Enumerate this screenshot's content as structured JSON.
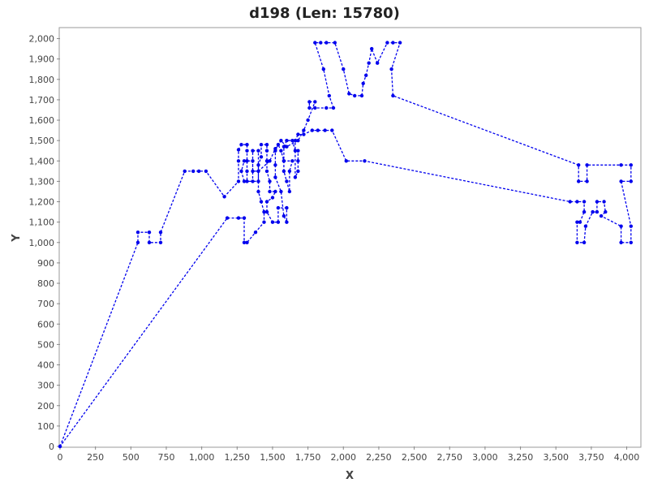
{
  "chart_data": {
    "type": "line",
    "title": "d198 (Len: 15780)",
    "xlabel": "X",
    "ylabel": "Y",
    "xlim": [
      0,
      4100
    ],
    "ylim": [
      0,
      2050
    ],
    "xticks": [
      0,
      250,
      500,
      750,
      1000,
      1250,
      1500,
      1750,
      2000,
      2250,
      2500,
      2750,
      3000,
      3250,
      3500,
      3750,
      4000
    ],
    "yticks": [
      0,
      100,
      200,
      300,
      400,
      500,
      600,
      700,
      800,
      900,
      1000,
      1100,
      1200,
      1300,
      1400,
      1500,
      1600,
      1700,
      1800,
      1900,
      2000
    ],
    "xtick_labels": [
      "0",
      "250",
      "500",
      "750",
      "1,000",
      "1,250",
      "1,500",
      "1,750",
      "2,000",
      "2,250",
      "2,500",
      "2,750",
      "3,000",
      "3,250",
      "3,500",
      "3,750",
      "4,000"
    ],
    "ytick_labels": [
      "0",
      "100",
      "200",
      "300",
      "400",
      "500",
      "600",
      "700",
      "800",
      "900",
      "1,000",
      "1,100",
      "1,200",
      "1,300",
      "1,400",
      "1,500",
      "1,600",
      "1,700",
      "1,800",
      "1,900",
      "2,000"
    ],
    "grid": false,
    "series_color": "#0000ee",
    "line_style": "dashed",
    "marker": "circle",
    "series": [
      {
        "points": [
          [
            0,
            0
          ],
          [
            550,
            1000
          ],
          [
            550,
            1050
          ],
          [
            630,
            1050
          ],
          [
            630,
            1000
          ],
          [
            710,
            1000
          ],
          [
            710,
            1050
          ],
          [
            880,
            1350
          ],
          [
            940,
            1350
          ],
          [
            980,
            1350
          ],
          [
            1030,
            1350
          ],
          [
            1160,
            1225
          ],
          [
            1260,
            1300
          ],
          [
            1260,
            1400
          ],
          [
            1260,
            1455
          ],
          [
            1280,
            1480
          ],
          [
            1320,
            1480
          ],
          [
            1320,
            1450
          ],
          [
            1320,
            1400
          ],
          [
            1320,
            1350
          ],
          [
            1320,
            1300
          ],
          [
            1360,
            1300
          ],
          [
            1360,
            1400
          ],
          [
            1300,
            1400
          ],
          [
            1280,
            1350
          ],
          [
            1300,
            1300
          ],
          [
            1400,
            1300
          ],
          [
            1400,
            1380
          ],
          [
            1420,
            1420
          ],
          [
            1420,
            1480
          ],
          [
            1460,
            1480
          ],
          [
            1460,
            1450
          ],
          [
            1460,
            1400
          ],
          [
            1460,
            1350
          ],
          [
            1480,
            1300
          ],
          [
            1480,
            1250
          ],
          [
            1520,
            1250
          ],
          [
            1500,
            1220
          ],
          [
            1460,
            1200
          ],
          [
            1460,
            1150
          ],
          [
            1500,
            1100
          ],
          [
            1540,
            1100
          ],
          [
            1540,
            1170
          ],
          [
            1600,
            1170
          ],
          [
            1600,
            1100
          ],
          [
            1580,
            1130
          ],
          [
            1560,
            1250
          ],
          [
            1520,
            1320
          ],
          [
            1520,
            1380
          ],
          [
            1520,
            1450
          ],
          [
            1540,
            1480
          ],
          [
            1560,
            1450
          ],
          [
            1580,
            1400
          ],
          [
            1580,
            1350
          ],
          [
            1600,
            1300
          ],
          [
            1620,
            1250
          ],
          [
            1620,
            1350
          ],
          [
            1640,
            1400
          ],
          [
            1580,
            1400
          ],
          [
            1580,
            1470
          ],
          [
            1600,
            1500
          ],
          [
            1640,
            1500
          ],
          [
            1660,
            1450
          ],
          [
            1680,
            1450
          ],
          [
            1680,
            1400
          ],
          [
            1680,
            1350
          ],
          [
            1660,
            1320
          ],
          [
            1660,
            1500
          ],
          [
            1680,
            1530
          ],
          [
            1720,
            1530
          ],
          [
            1780,
            1550
          ],
          [
            1820,
            1550
          ],
          [
            1870,
            1550
          ],
          [
            1920,
            1550
          ],
          [
            2020,
            1400
          ],
          [
            2150,
            1400
          ],
          [
            3600,
            1200
          ],
          [
            3650,
            1200
          ],
          [
            3700,
            1200
          ],
          [
            3700,
            1150
          ],
          [
            3670,
            1100
          ],
          [
            3650,
            1100
          ],
          [
            3650,
            1000
          ],
          [
            3700,
            1000
          ],
          [
            3710,
            1080
          ],
          [
            3760,
            1150
          ],
          [
            3790,
            1150
          ],
          [
            3790,
            1200
          ],
          [
            3840,
            1200
          ],
          [
            3850,
            1150
          ],
          [
            3820,
            1130
          ],
          [
            3960,
            1080
          ],
          [
            3960,
            1000
          ],
          [
            4030,
            1000
          ],
          [
            4030,
            1080
          ],
          [
            3960,
            1300
          ],
          [
            4030,
            1300
          ],
          [
            4030,
            1380
          ],
          [
            3960,
            1380
          ],
          [
            3720,
            1380
          ],
          [
            3720,
            1300
          ],
          [
            3660,
            1300
          ],
          [
            3660,
            1380
          ],
          [
            2350,
            1720
          ],
          [
            2340,
            1850
          ],
          [
            2400,
            1980
          ],
          [
            2350,
            1980
          ],
          [
            2310,
            1980
          ],
          [
            2240,
            1880
          ],
          [
            2200,
            1950
          ],
          [
            2180,
            1880
          ],
          [
            2160,
            1820
          ],
          [
            2140,
            1780
          ],
          [
            2130,
            1720
          ],
          [
            2080,
            1720
          ],
          [
            2040,
            1730
          ],
          [
            2000,
            1850
          ],
          [
            1940,
            1980
          ],
          [
            1880,
            1980
          ],
          [
            1840,
            1980
          ],
          [
            1800,
            1980
          ],
          [
            1860,
            1850
          ],
          [
            1900,
            1720
          ],
          [
            1930,
            1660
          ],
          [
            1880,
            1660
          ],
          [
            1800,
            1660
          ],
          [
            1760,
            1660
          ],
          [
            1760,
            1690
          ],
          [
            1800,
            1690
          ],
          [
            1750,
            1600
          ],
          [
            1720,
            1550
          ],
          [
            1680,
            1500
          ],
          [
            1600,
            1470
          ],
          [
            1560,
            1500
          ],
          [
            1520,
            1460
          ],
          [
            1480,
            1400
          ],
          [
            1400,
            1350
          ],
          [
            1360,
            1350
          ],
          [
            1360,
            1450
          ],
          [
            1400,
            1450
          ],
          [
            1400,
            1250
          ],
          [
            1420,
            1200
          ],
          [
            1440,
            1150
          ],
          [
            1440,
            1100
          ],
          [
            1380,
            1050
          ],
          [
            1320,
            1000
          ],
          [
            1300,
            1000
          ],
          [
            1300,
            1120
          ],
          [
            1260,
            1120
          ],
          [
            1180,
            1120
          ],
          [
            0,
            0
          ]
        ]
      }
    ]
  }
}
